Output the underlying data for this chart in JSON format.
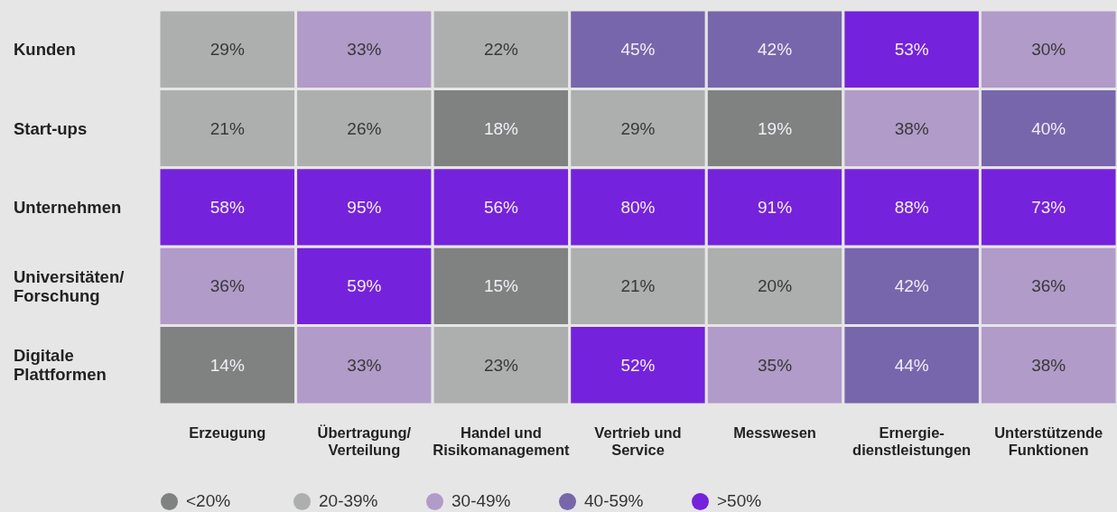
{
  "chart_data": {
    "type": "heatmap",
    "categories": [
      "Erzeugung",
      "Übertragung/\nVerteilung",
      "Handel und\nRisikomanagement",
      "Vertrieb und\nService",
      "Messwesen",
      "Ernergie-\ndienstleistungen",
      "Unterstützende\nFunktionen"
    ],
    "y_categories": [
      "Kunden",
      "Start-ups",
      "Unternehmen",
      "Universitäten/\nForschung",
      "Digitale\nPlattformen"
    ],
    "cells": [
      [
        29,
        33,
        22,
        45,
        42,
        53,
        30
      ],
      [
        21,
        26,
        18,
        29,
        19,
        38,
        40
      ],
      [
        58,
        95,
        56,
        80,
        91,
        88,
        73
      ],
      [
        36,
        59,
        15,
        21,
        20,
        42,
        36
      ],
      [
        14,
        33,
        23,
        52,
        35,
        44,
        38
      ]
    ],
    "cell_labels": [
      [
        "29%",
        "33%",
        "22%",
        "45%",
        "42%",
        "53%",
        "30%"
      ],
      [
        "21%",
        "26%",
        "18%",
        "29%",
        "19%",
        "38%",
        "40%"
      ],
      [
        "58%",
        "95%",
        "56%",
        "80%",
        "91%",
        "88%",
        "73%"
      ],
      [
        "36%",
        "59%",
        "15%",
        "21%",
        "20%",
        "42%",
        "36%"
      ],
      [
        "14%",
        "33%",
        "23%",
        "52%",
        "35%",
        "44%",
        "38%"
      ]
    ],
    "colors": [
      [
        "#adafaf",
        "#b19bc9",
        "#adafaf",
        "#7866ac",
        "#7866ac",
        "#7522dc",
        "#b19bc9"
      ],
      [
        "#adafaf",
        "#adafaf",
        "#7f8281",
        "#adafaf",
        "#7f8281",
        "#b19bc9",
        "#7866ac"
      ],
      [
        "#7522dc",
        "#7522dc",
        "#7522dc",
        "#7522dc",
        "#7522dc",
        "#7522dc",
        "#7522dc"
      ],
      [
        "#b19bc9",
        "#7522dc",
        "#7f8281",
        "#adafaf",
        "#adafaf",
        "#7866ac",
        "#b19bc9"
      ],
      [
        "#7f8281",
        "#b19bc9",
        "#adafaf",
        "#7522dc",
        "#b19bc9",
        "#7866ac",
        "#b19bc9"
      ]
    ],
    "annotations": [
      "<20%",
      "20-39%",
      "30-49%",
      "40-59%",
      ">50%"
    ]
  }
}
